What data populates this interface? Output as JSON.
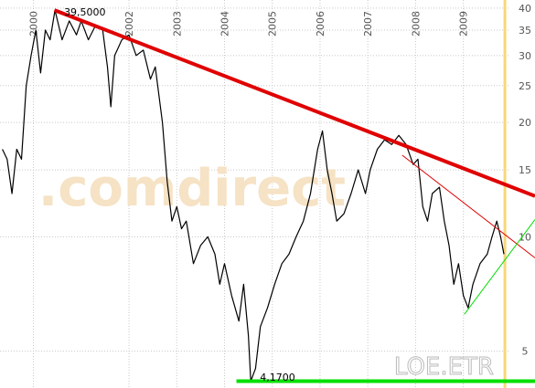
{
  "chart_data": {
    "type": "line",
    "log_scale": true,
    "grid": true,
    "xlim": [
      1999.3,
      2010.5
    ],
    "ylim": [
      4,
      42
    ],
    "xticks": [
      2000,
      2002,
      2003,
      2004,
      2005,
      2006,
      2007,
      2008,
      2009
    ],
    "yticks": [
      5,
      10,
      15,
      20,
      25,
      30,
      35,
      40
    ],
    "watermark": ".comdirect",
    "symbol": "LOE.ETR",
    "current_date_line": {
      "x": 2009.87,
      "color": "#f7d77a"
    },
    "series": [
      {
        "name": "LOE.ETR",
        "color": "#000000",
        "x": [
          1999.35,
          1999.45,
          1999.55,
          1999.65,
          1999.75,
          1999.85,
          1999.95,
          2000.05,
          2000.15,
          2000.25,
          2000.35,
          2000.45,
          2000.6,
          2000.75,
          2000.9,
          2001.0,
          2001.15,
          2001.3,
          2001.45,
          2001.55,
          2001.62,
          2001.7,
          2001.85,
          2002.0,
          2002.15,
          2002.3,
          2002.45,
          2002.55,
          2002.7,
          2002.8,
          2002.9,
          2003.0,
          2003.1,
          2003.2,
          2003.35,
          2003.5,
          2003.65,
          2003.8,
          2003.9,
          2004.0,
          2004.15,
          2004.3,
          2004.4,
          2004.5,
          2004.55,
          2004.65,
          2004.75,
          2004.9,
          2005.05,
          2005.2,
          2005.35,
          2005.5,
          2005.65,
          2005.8,
          2005.95,
          2006.05,
          2006.15,
          2006.25,
          2006.35,
          2006.5,
          2006.65,
          2006.8,
          2006.95,
          2007.05,
          2007.2,
          2007.35,
          2007.5,
          2007.65,
          2007.8,
          2007.95,
          2008.05,
          2008.15,
          2008.25,
          2008.35,
          2008.5,
          2008.6,
          2008.7,
          2008.8,
          2008.9,
          2009.0,
          2009.1,
          2009.2,
          2009.35,
          2009.5,
          2009.6,
          2009.7,
          2009.78,
          2009.85
        ],
        "values": [
          17,
          16,
          13,
          17,
          16,
          25,
          30,
          35,
          27,
          35,
          33,
          39.5,
          33,
          37,
          34,
          37,
          33,
          36,
          35,
          28,
          22,
          30,
          33,
          34,
          30,
          31,
          26,
          28,
          20,
          14,
          11,
          12,
          10.5,
          11,
          8.5,
          9.5,
          10,
          9,
          7.5,
          8.5,
          7,
          6,
          7.5,
          5.5,
          4.17,
          4.5,
          5.8,
          6.5,
          7.5,
          8.5,
          9,
          10,
          11,
          13,
          17,
          19,
          15,
          13,
          11,
          11.5,
          13,
          15,
          13,
          15,
          17,
          18,
          17.5,
          18.5,
          17.5,
          15.5,
          16,
          12,
          11,
          13,
          13.5,
          11,
          9.5,
          7.5,
          8.5,
          7,
          6.5,
          7.5,
          8.5,
          9,
          10,
          11,
          10,
          9
        ]
      }
    ],
    "trendlines": [
      {
        "color": "#e00000",
        "width": 4,
        "x": [
          2000.44,
          2010.5
        ],
        "values": [
          39.5,
          12.8
        ]
      },
      {
        "color": "#e00000",
        "width": 1,
        "x": [
          2007.72,
          2010.5
        ],
        "values": [
          16.4,
          8.8
        ]
      },
      {
        "color": "#00dd00",
        "width": 1,
        "x": [
          2009.02,
          2010.5
        ],
        "values": [
          6.25,
          11.1
        ]
      },
      {
        "color": "#00e000",
        "width": 4,
        "x": [
          2004.25,
          2010.5
        ],
        "values": [
          4.17,
          4.17
        ]
      }
    ],
    "annotations": [
      {
        "text": "39,5000",
        "x": 2000.45,
        "y": 39.5
      },
      {
        "text": "4,1700",
        "x": 2004.55,
        "y": 4.17
      }
    ]
  }
}
